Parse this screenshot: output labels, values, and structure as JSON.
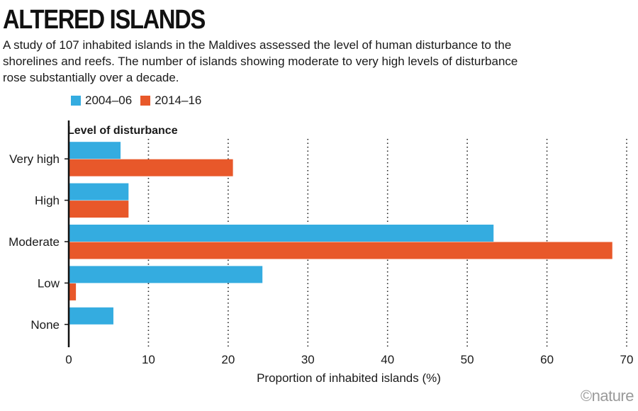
{
  "header": {
    "title": "ALTERED ISLANDS",
    "subtitle": "A study of 107 inhabited islands in the Maldives assessed the level of human disturbance to the shorelines and reefs. The number of islands showing moderate to very high levels of disturbance rose substantially over a decade."
  },
  "credit": "©nature",
  "chart_data": {
    "type": "bar",
    "orientation": "horizontal",
    "title": "ALTERED ISLANDS",
    "categories": [
      "Very high",
      "High",
      "Moderate",
      "Low",
      "None"
    ],
    "category_axis_title": "Level of disturbance",
    "series": [
      {
        "name": "2004–06",
        "color": "#34ace0",
        "values": [
          6.5,
          7.5,
          53.3,
          24.3,
          5.6
        ]
      },
      {
        "name": "2014–16",
        "color": "#e8582a",
        "values": [
          20.6,
          7.5,
          68.2,
          0.9,
          0
        ]
      }
    ],
    "xlabel": "Proportion of inhabited islands (%)",
    "xlim": [
      0,
      70
    ],
    "xticks": [
      0,
      10,
      20,
      30,
      40,
      50,
      60,
      70
    ],
    "grid": "vertical dotted",
    "legend_position": "top-left"
  }
}
